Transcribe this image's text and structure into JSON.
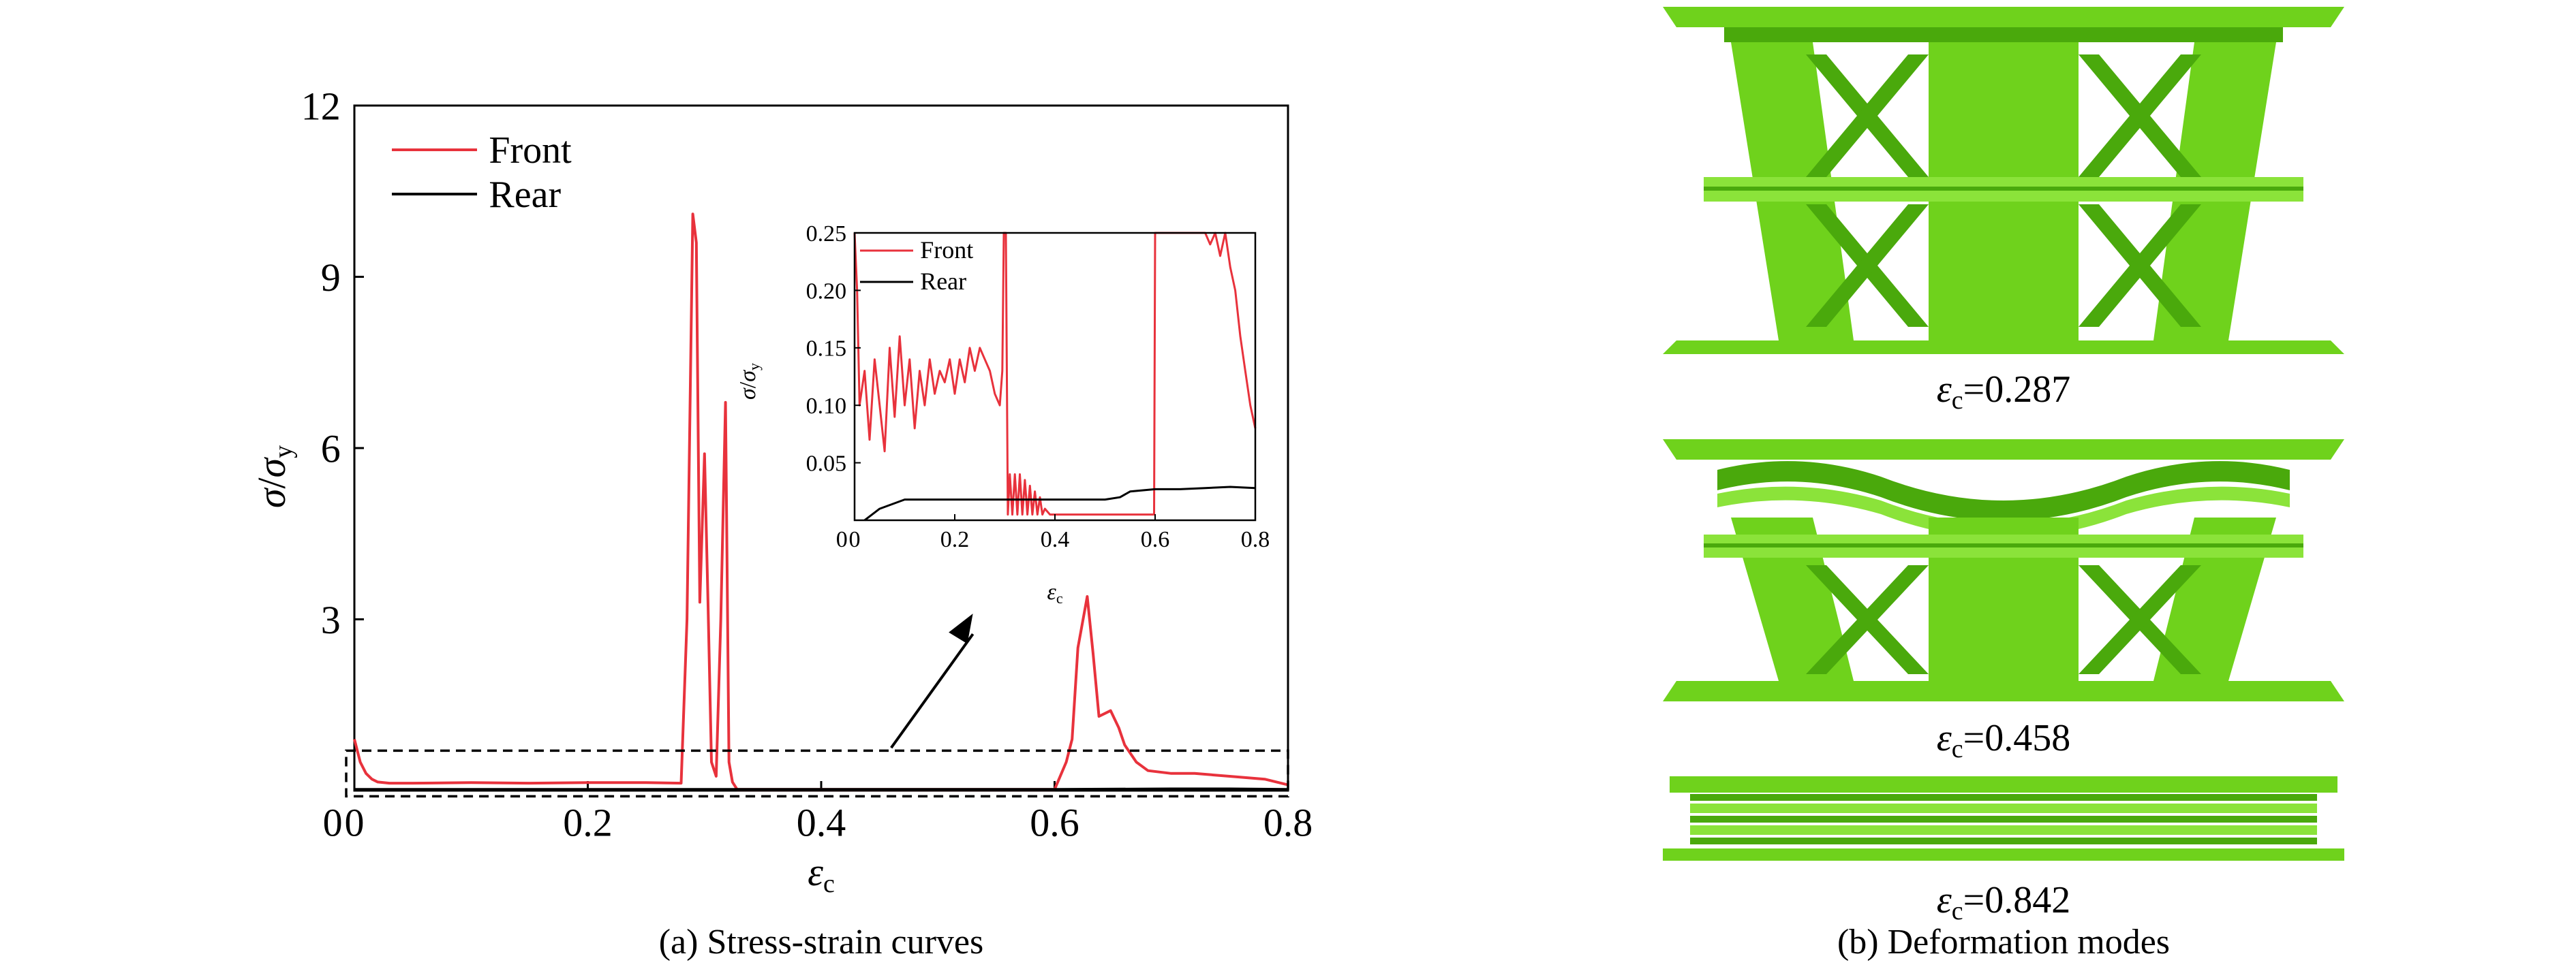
{
  "panels": {
    "a": {
      "caption": "(a) Stress-strain curves"
    },
    "b": {
      "caption": "(b) Deformation modes",
      "modes": [
        {
          "symbol": "ε",
          "sub": "c",
          "value_text": "=0.287"
        },
        {
          "symbol": "ε",
          "sub": "c",
          "value_text": "=0.458"
        },
        {
          "symbol": "ε",
          "sub": "c",
          "value_text": "=0.842"
        }
      ],
      "colors": {
        "lattice": "#6fd21c",
        "lattice_dark": "#4aa90c"
      }
    }
  },
  "chart_data": [
    {
      "type": "line",
      "xlabel": {
        "symbol": "ε",
        "sub": "c"
      },
      "ylabel": {
        "num": "σ",
        "den": "σ",
        "den_sub": "y"
      },
      "xlim": [
        0,
        0.8
      ],
      "ylim": [
        0,
        12
      ],
      "xticks": [
        0,
        0.2,
        0.4,
        0.6,
        0.8
      ],
      "xtick_labels": [
        "0",
        "0.2",
        "0.4",
        "0.6",
        "0.8"
      ],
      "yticks": [
        3,
        6,
        9,
        12
      ],
      "ytick_labels": [
        "3",
        "6",
        "9",
        "12"
      ],
      "legend": {
        "placement": "top-left",
        "entries": [
          "Front",
          "Rear"
        ]
      },
      "grid": false,
      "series": [
        {
          "name": "Front",
          "color": "#e8323c",
          "x": [
            0,
            0.005,
            0.01,
            0.015,
            0.02,
            0.03,
            0.05,
            0.1,
            0.15,
            0.2,
            0.25,
            0.28,
            0.285,
            0.29,
            0.293,
            0.296,
            0.3,
            0.303,
            0.306,
            0.31,
            0.314,
            0.318,
            0.321,
            0.324,
            0.328,
            0.6,
            0.61,
            0.615,
            0.62,
            0.628,
            0.633,
            0.638,
            0.643,
            0.648,
            0.655,
            0.66,
            0.67,
            0.68,
            0.7,
            0.72,
            0.75,
            0.78,
            0.8
          ],
          "y": [
            0.9,
            0.5,
            0.3,
            0.2,
            0.15,
            0.13,
            0.13,
            0.14,
            0.13,
            0.14,
            0.14,
            0.13,
            3.0,
            10.1,
            9.6,
            3.3,
            5.9,
            3.3,
            0.5,
            0.25,
            3.0,
            6.8,
            0.5,
            0.15,
            0.02,
            0.02,
            0.5,
            0.9,
            2.5,
            3.4,
            2.4,
            1.3,
            1.35,
            1.4,
            1.1,
            0.8,
            0.5,
            0.35,
            0.3,
            0.3,
            0.25,
            0.2,
            0.1
          ]
        },
        {
          "name": "Rear",
          "color": "#000000",
          "x": [
            0,
            0.05,
            0.1,
            0.2,
            0.3,
            0.45,
            0.53,
            0.6,
            0.7,
            0.75,
            0.8
          ],
          "y": [
            0.02,
            0.02,
            0.02,
            0.02,
            0.02,
            0.02,
            0.02,
            0.02,
            0.03,
            0.03,
            0.02
          ]
        }
      ],
      "annotations": [
        {
          "type": "dashed-box",
          "x_range": [
            0,
            0.8
          ],
          "y_range": [
            -0.1,
            0.7
          ]
        },
        {
          "type": "arrow",
          "from": [
            0.46,
            0.75
          ],
          "to": [
            0.53,
            3.1
          ]
        }
      ]
    },
    {
      "type": "line",
      "xlabel": {
        "symbol": "ε",
        "sub": "c"
      },
      "ylabel": {
        "num": "σ",
        "den": "σ",
        "den_sub": "y"
      },
      "xlim": [
        0,
        0.8
      ],
      "ylim": [
        0,
        0.25
      ],
      "xticks": [
        0,
        0.2,
        0.4,
        0.6,
        0.8
      ],
      "xtick_labels": [
        "0",
        "0.2",
        "0.4",
        "0.6",
        "0.8"
      ],
      "yticks": [
        0.05,
        0.1,
        0.15,
        0.2,
        0.25
      ],
      "ytick_labels": [
        "0.05",
        "0.10",
        "0.15",
        "0.20",
        "0.25"
      ],
      "legend": {
        "placement": "top-left",
        "entries": [
          "Front",
          "Rear"
        ]
      },
      "grid": false,
      "series": [
        {
          "name": "Front",
          "color": "#e8323c",
          "x": [
            0,
            0.005,
            0.01,
            0.02,
            0.03,
            0.04,
            0.05,
            0.06,
            0.07,
            0.08,
            0.09,
            0.1,
            0.11,
            0.12,
            0.13,
            0.14,
            0.15,
            0.16,
            0.17,
            0.18,
            0.19,
            0.2,
            0.21,
            0.22,
            0.23,
            0.24,
            0.25,
            0.26,
            0.27,
            0.28,
            0.29,
            0.295,
            0.298,
            0.302,
            0.306,
            0.31,
            0.315,
            0.32,
            0.325,
            0.33,
            0.335,
            0.34,
            0.345,
            0.35,
            0.355,
            0.36,
            0.365,
            0.37,
            0.375,
            0.38,
            0.39,
            0.4,
            0.42,
            0.44,
            0.46,
            0.48,
            0.5,
            0.52,
            0.54,
            0.56,
            0.58,
            0.598,
            0.6,
            0.602,
            0.7,
            0.71,
            0.72,
            0.73,
            0.74,
            0.75,
            0.76,
            0.77,
            0.78,
            0.79,
            0.8
          ],
          "y": [
            0.25,
            0.2,
            0.1,
            0.13,
            0.07,
            0.14,
            0.1,
            0.06,
            0.15,
            0.09,
            0.16,
            0.1,
            0.14,
            0.08,
            0.13,
            0.1,
            0.14,
            0.11,
            0.13,
            0.12,
            0.14,
            0.11,
            0.14,
            0.12,
            0.15,
            0.13,
            0.15,
            0.14,
            0.13,
            0.11,
            0.1,
            0.13,
            0.25,
            0.25,
            0.005,
            0.04,
            0.005,
            0.04,
            0.005,
            0.04,
            0.005,
            0.035,
            0.005,
            0.03,
            0.005,
            0.025,
            0.005,
            0.02,
            0.005,
            0.01,
            0.005,
            0.005,
            0.005,
            0.005,
            0.005,
            0.005,
            0.005,
            0.005,
            0.005,
            0.005,
            0.005,
            0.005,
            0.25,
            0.25,
            0.25,
            0.24,
            0.25,
            0.23,
            0.25,
            0.22,
            0.2,
            0.16,
            0.13,
            0.1,
            0.08
          ]
        },
        {
          "name": "Rear",
          "color": "#000000",
          "x": [
            0.02,
            0.05,
            0.1,
            0.15,
            0.2,
            0.3,
            0.4,
            0.5,
            0.53,
            0.55,
            0.6,
            0.65,
            0.7,
            0.75,
            0.8
          ],
          "y": [
            0.0,
            0.01,
            0.018,
            0.018,
            0.018,
            0.018,
            0.018,
            0.018,
            0.02,
            0.025,
            0.027,
            0.027,
            0.028,
            0.029,
            0.028
          ]
        }
      ]
    }
  ]
}
